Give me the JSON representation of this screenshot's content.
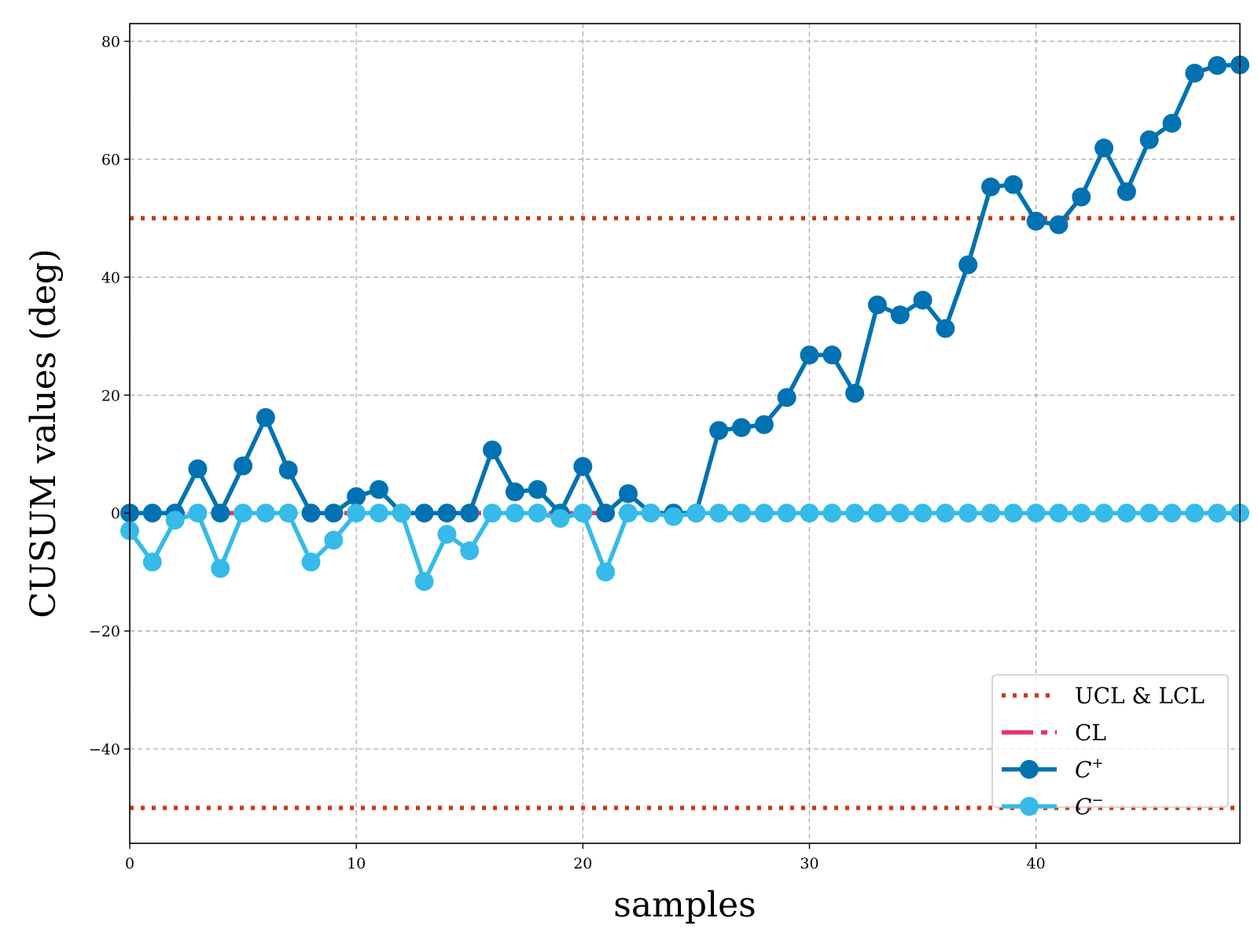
{
  "chart_data": {
    "type": "line",
    "title": "",
    "xlabel": "samples",
    "ylabel": "CUSUM values (deg)",
    "xlim": [
      0,
      49
    ],
    "ylim": [
      -56,
      83
    ],
    "x_ticks": [
      0,
      10,
      20,
      30,
      40
    ],
    "y_ticks": [
      -40,
      -20,
      0,
      20,
      40,
      60,
      80
    ],
    "x_tick_labels": [
      "0",
      "10",
      "20",
      "30",
      "40"
    ],
    "y_tick_labels": [
      "−40",
      "−20",
      "0",
      "20",
      "40",
      "60",
      "80"
    ],
    "grid": true,
    "legend_position": "lower-right",
    "reference_lines": [
      {
        "name": "UCL & LCL",
        "values": [
          50,
          -50
        ],
        "color": "#c8391b",
        "style": "dotted"
      },
      {
        "name": "CL",
        "values": [
          0
        ],
        "color": "#e8336d",
        "style": "dashdot"
      }
    ],
    "series": [
      {
        "name": "C+",
        "color": "#0072b2",
        "x": [
          0,
          1,
          2,
          3,
          4,
          5,
          6,
          7,
          8,
          9,
          10,
          11,
          12,
          13,
          14,
          15,
          16,
          17,
          18,
          19,
          20,
          21,
          22,
          23,
          24,
          25,
          26,
          27,
          28,
          29,
          30,
          31,
          32,
          33,
          34,
          35,
          36,
          37,
          38,
          39,
          40,
          41,
          42,
          43,
          44,
          45,
          46,
          47,
          48,
          49
        ],
        "values": [
          0,
          0,
          0,
          7.5,
          0,
          8,
          16.2,
          7.3,
          0,
          0,
          2.8,
          4,
          0,
          0,
          0,
          0,
          10.7,
          3.6,
          4,
          0,
          7.9,
          0,
          3.3,
          0,
          0,
          0,
          14,
          14.5,
          15,
          19.6,
          26.8,
          26.8,
          20.3,
          35.3,
          33.6,
          36.1,
          31.3,
          42.1,
          55.3,
          55.7,
          49.5,
          48.9,
          53.6,
          61.9,
          54.5,
          63.3,
          66.1,
          74.6,
          75.9,
          76
        ]
      },
      {
        "name": "C−",
        "color": "#35baea",
        "x": [
          0,
          1,
          2,
          3,
          4,
          5,
          6,
          7,
          8,
          9,
          10,
          11,
          12,
          13,
          14,
          15,
          16,
          17,
          18,
          19,
          20,
          21,
          22,
          23,
          24,
          25,
          26,
          27,
          28,
          29,
          30,
          31,
          32,
          33,
          34,
          35,
          36,
          37,
          38,
          39,
          40,
          41,
          42,
          43,
          44,
          45,
          46,
          47,
          48,
          49
        ],
        "values": [
          -3,
          -8.3,
          -1.2,
          0,
          -9.4,
          0,
          0,
          0,
          -8.3,
          -4.6,
          0,
          0,
          0,
          -11.6,
          -3.6,
          -6.4,
          0,
          0,
          0,
          -0.9,
          0,
          -10,
          0,
          0,
          -0.6,
          0,
          0,
          0,
          0,
          0,
          0,
          0,
          0,
          0,
          0,
          0,
          0,
          0,
          0,
          0,
          0,
          0,
          0,
          0,
          0,
          0,
          0,
          0,
          0,
          0
        ]
      }
    ]
  },
  "legend": {
    "items": [
      {
        "label": "UCL & LCL",
        "kind": "dotted",
        "color": "#c8391b"
      },
      {
        "label": "CL",
        "kind": "dashdot",
        "color": "#e8336d"
      },
      {
        "label": "C",
        "sup": "+",
        "kind": "marker-line",
        "color": "#0072b2"
      },
      {
        "label": "C",
        "sup": "−",
        "kind": "marker-line",
        "color": "#35baea"
      }
    ]
  }
}
